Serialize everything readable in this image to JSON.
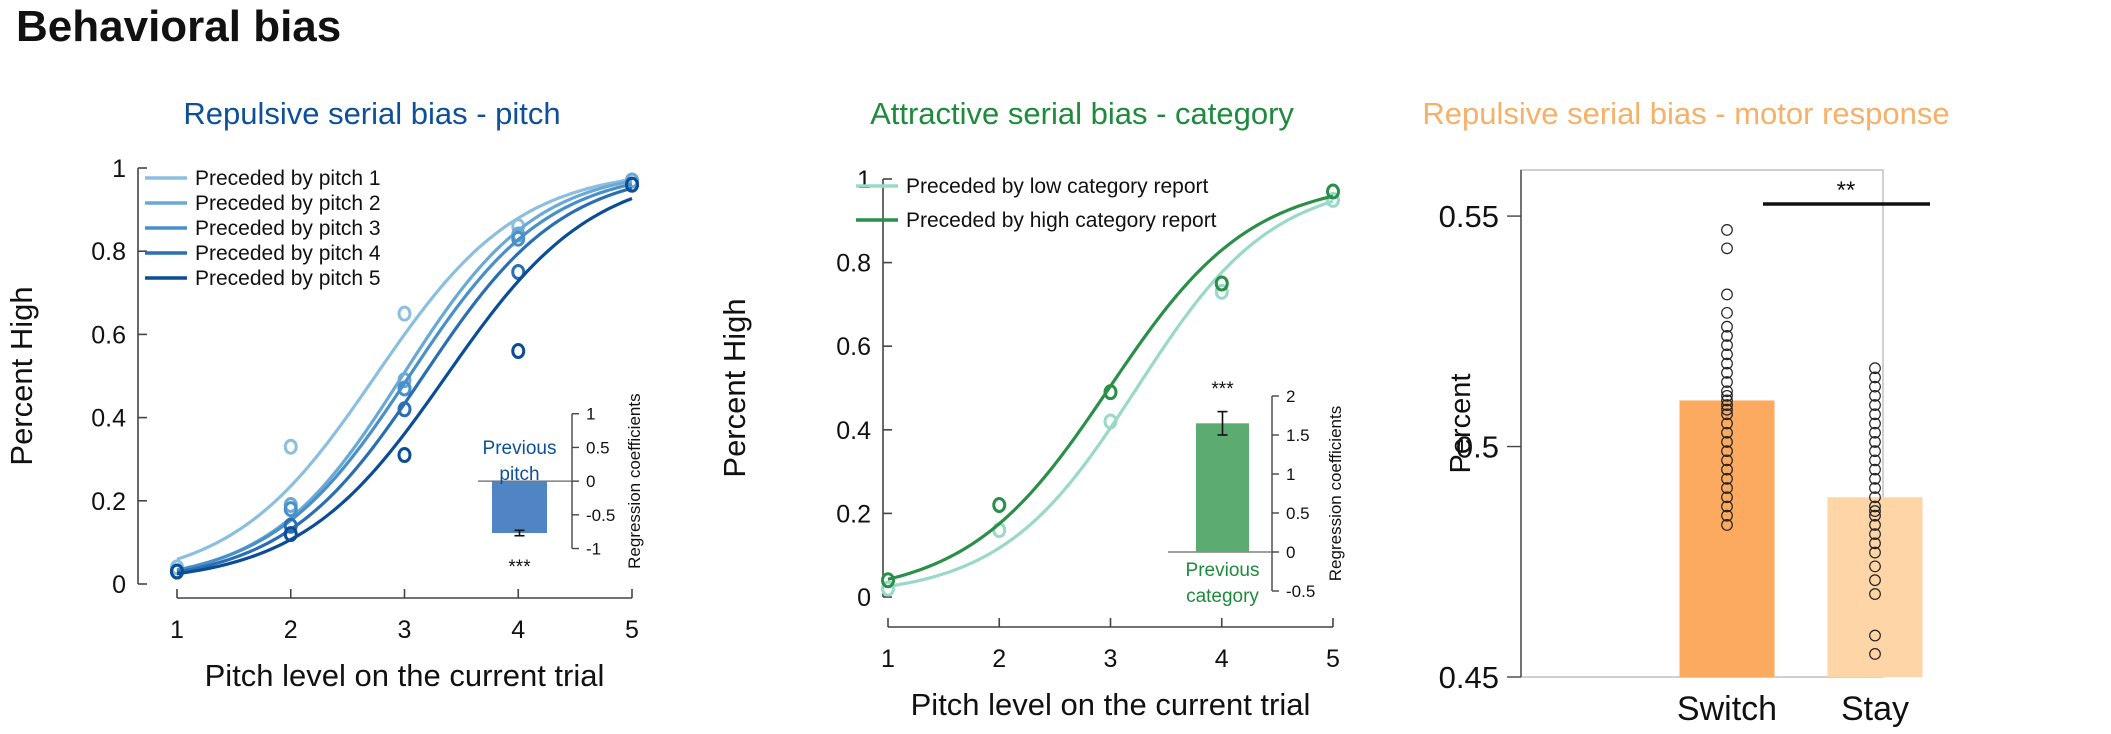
{
  "figure": {
    "title": "Behavioral bias"
  },
  "colors": {
    "pitch": [
      "#8cbfdf",
      "#6aa9d6",
      "#4a90c8",
      "#2a6fb2",
      "#0b4d96"
    ],
    "pitch_title": "#0d4f9a",
    "category_low": "#9ad8c8",
    "category_high": "#2a8f48",
    "category_title": "#1e8a3c",
    "inset_pitch_bar": "#4f85c2",
    "inset_category_bar": "#5cac72",
    "motor_title": "#f7b067",
    "switch_bar": "#fcaa5f",
    "stay_bar": "#fdd5a6"
  },
  "chart_data": [
    {
      "type": "line",
      "title": "Repulsive serial bias - pitch",
      "xlabel": "Pitch level on the current trial",
      "ylabel": "Percent High",
      "x": [
        1,
        2,
        3,
        4,
        5
      ],
      "xlim": [
        1,
        5
      ],
      "ylim": [
        0,
        1
      ],
      "xticks": [
        "1",
        "2",
        "3",
        "4",
        "5"
      ],
      "yticks": [
        "0",
        "0.2",
        "0.4",
        "0.6",
        "0.8",
        "1"
      ],
      "legend": "top-left",
      "series": [
        {
          "name": "Preceded by pitch 1",
          "values": [
            0.04,
            0.33,
            0.65,
            0.86,
            0.97
          ]
        },
        {
          "name": "Preceded by pitch 2",
          "values": [
            0.03,
            0.19,
            0.49,
            0.84,
            0.97
          ]
        },
        {
          "name": "Preceded by pitch 3",
          "values": [
            0.03,
            0.18,
            0.47,
            0.83,
            0.96
          ]
        },
        {
          "name": "Preceded by pitch 4",
          "values": [
            0.03,
            0.14,
            0.42,
            0.75,
            0.96
          ]
        },
        {
          "name": "Preceded by pitch 5",
          "values": [
            0.03,
            0.12,
            0.31,
            0.56,
            0.96
          ]
        }
      ],
      "inset": {
        "type": "bar",
        "categories": [
          "Previous\npitch"
        ],
        "values": [
          -0.77
        ],
        "error": [
          0.04
        ],
        "significance": "***",
        "ylabel": "Regression coefficients",
        "ylim": [
          -1.2,
          1.1
        ],
        "yticks": [
          "1",
          "0.5",
          "0",
          "-0.5",
          "-1"
        ]
      }
    },
    {
      "type": "line",
      "title": "Attractive serial bias - category",
      "xlabel": "Pitch level on the current trial",
      "ylabel": "Percent High",
      "x": [
        1,
        2,
        3,
        4,
        5
      ],
      "xlim": [
        1,
        5
      ],
      "ylim": [
        0,
        1
      ],
      "xticks": [
        "1",
        "2",
        "3",
        "4",
        "5"
      ],
      "yticks": [
        "0",
        "0.2",
        "0.4",
        "0.6",
        "0.8",
        "1"
      ],
      "legend": "top-left",
      "series": [
        {
          "name": "Preceded by low category report",
          "values": [
            0.02,
            0.16,
            0.42,
            0.73,
            0.95
          ]
        },
        {
          "name": "Preceded by high category report",
          "values": [
            0.04,
            0.22,
            0.49,
            0.75,
            0.97
          ]
        }
      ],
      "inset": {
        "type": "bar",
        "categories": [
          "Previous\ncategory"
        ],
        "values": [
          1.65
        ],
        "error": [
          0.15
        ],
        "significance": "***",
        "ylabel": "Regression coefficients",
        "ylim": [
          -0.5,
          2
        ],
        "yticks": [
          "2",
          "1.5",
          "1",
          "0.5",
          "0",
          "-0.5"
        ]
      }
    },
    {
      "type": "bar",
      "title": "Repulsive serial bias - motor response",
      "xlabel": "",
      "ylabel": "Percent",
      "categories": [
        "Switch",
        "Stay"
      ],
      "values": [
        0.51,
        0.489
      ],
      "ylim": [
        0.45,
        0.56
      ],
      "yticks": [
        "0.55",
        "0.5",
        "0.45"
      ],
      "significance": "**",
      "points": [
        [
          0.547,
          0.543,
          0.533,
          0.529,
          0.526,
          0.524,
          0.522,
          0.52,
          0.518,
          0.516,
          0.514,
          0.512,
          0.511,
          0.51,
          0.509,
          0.508,
          0.507,
          0.505,
          0.503,
          0.501,
          0.499,
          0.497,
          0.495,
          0.493,
          0.491,
          0.489,
          0.487,
          0.485,
          0.483
        ],
        [
          0.517,
          0.515,
          0.513,
          0.511,
          0.509,
          0.507,
          0.505,
          0.503,
          0.501,
          0.499,
          0.497,
          0.495,
          0.493,
          0.491,
          0.489,
          0.487,
          0.486,
          0.485,
          0.483,
          0.481,
          0.479,
          0.477,
          0.474,
          0.471,
          0.468,
          0.459,
          0.455
        ]
      ]
    }
  ]
}
